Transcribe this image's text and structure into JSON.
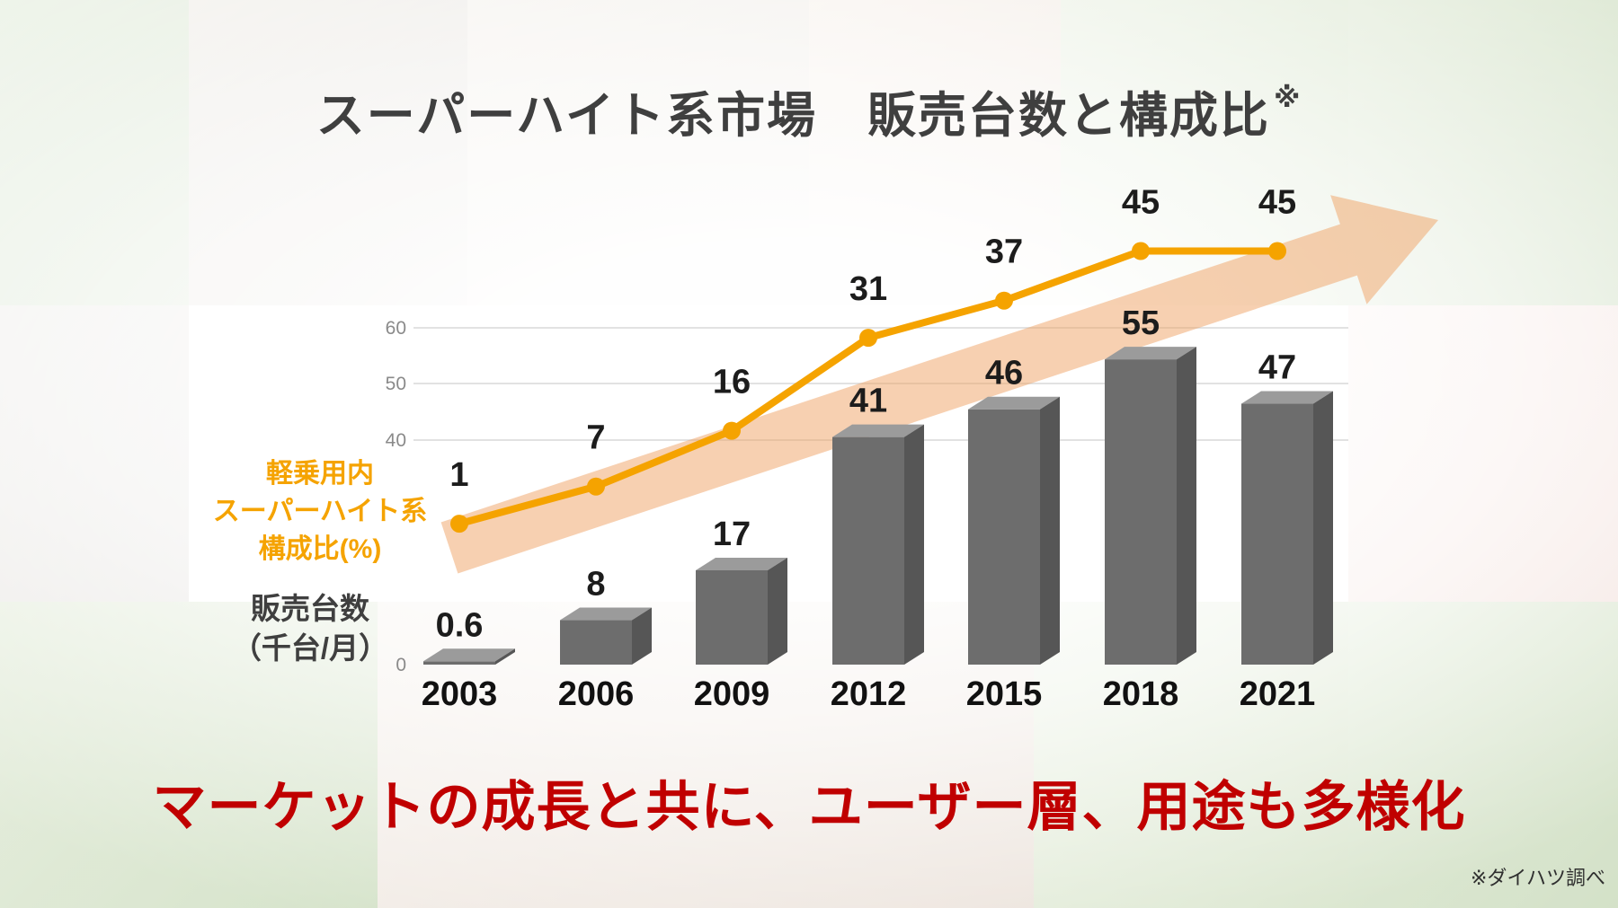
{
  "slide": {
    "title": "スーパーハイト系市場　販売台数と構成比",
    "title_note": "※",
    "message": "マーケットの成長と共に、ユーザー層、用途も多様化",
    "footnote": "※ダイハツ調べ",
    "accent_red": "#C00000"
  },
  "chart_data": {
    "type": "bar",
    "title": "スーパーハイト系市場 販売台数と構成比",
    "categories": [
      "2003",
      "2006",
      "2009",
      "2012",
      "2015",
      "2018",
      "2021"
    ],
    "series": [
      {
        "name": "販売台数（千台/月）",
        "type": "bar",
        "values": [
          0.6,
          8,
          17,
          41,
          46,
          55,
          47
        ],
        "color": "#6d6d6d"
      },
      {
        "name": "軽乗用内スーパーハイト系構成比(%)",
        "type": "line",
        "values": [
          1,
          7,
          16,
          31,
          37,
          45,
          45
        ],
        "color": "#F5A300"
      }
    ],
    "axis_label_line": [
      "軽乗用内",
      "スーパーハイト系",
      "構成比(%)"
    ],
    "axis_label_bar": [
      "販売台数",
      "（千台/月）"
    ],
    "y_ticks_left": [
      60,
      50,
      40,
      0
    ],
    "ylim": [
      0,
      65
    ],
    "grid": true,
    "legend_position": "left-axis-labels",
    "arrow_color": "#EFA263",
    "annotation": "upward growth arrow"
  }
}
